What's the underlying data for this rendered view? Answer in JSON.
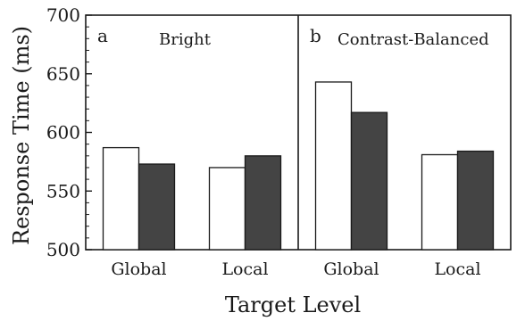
{
  "chart_data": {
    "type": "bar",
    "ylabel": "Response Time (ms)",
    "xlabel": "Target Level",
    "ylim": [
      500,
      700
    ],
    "yticks": [
      500,
      550,
      600,
      650,
      700
    ],
    "bar_colors": [
      "#ffffff",
      "#444444"
    ],
    "panels": [
      {
        "letter": "a",
        "title": "Bright",
        "categories": [
          "Global",
          "Local"
        ],
        "series": [
          {
            "values": [
              587,
              570
            ]
          },
          {
            "values": [
              573,
              580
            ]
          }
        ]
      },
      {
        "letter": "b",
        "title": "Contrast-Balanced",
        "categories": [
          "Global",
          "Local"
        ],
        "series": [
          {
            "values": [
              643,
              581
            ]
          },
          {
            "values": [
              617,
              584
            ]
          }
        ]
      }
    ]
  }
}
